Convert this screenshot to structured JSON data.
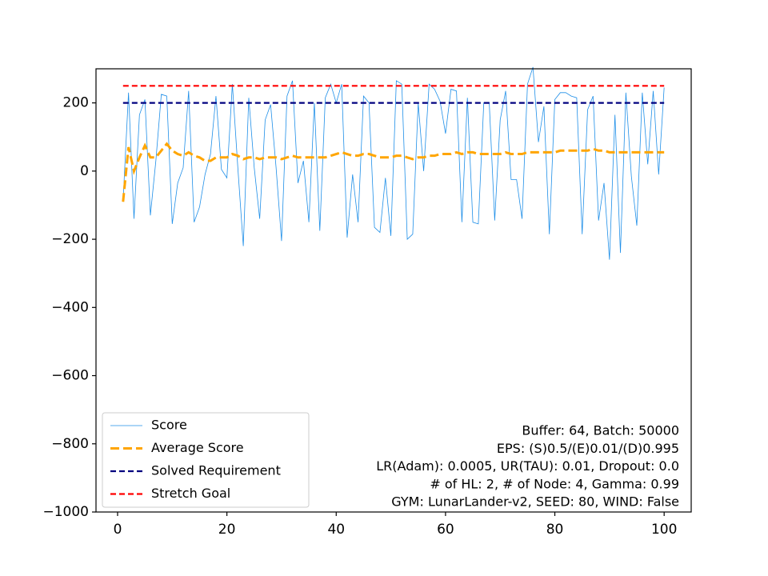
{
  "chart_data": {
    "type": "line",
    "x": [
      1,
      2,
      3,
      4,
      5,
      6,
      7,
      8,
      9,
      10,
      11,
      12,
      13,
      14,
      15,
      16,
      17,
      18,
      19,
      20,
      21,
      22,
      23,
      24,
      25,
      26,
      27,
      28,
      29,
      30,
      31,
      32,
      33,
      34,
      35,
      36,
      37,
      38,
      39,
      40,
      41,
      42,
      43,
      44,
      45,
      46,
      47,
      48,
      49,
      50,
      51,
      52,
      53,
      54,
      55,
      56,
      57,
      58,
      59,
      60,
      61,
      62,
      63,
      64,
      65,
      66,
      67,
      68,
      69,
      70,
      71,
      72,
      73,
      74,
      75,
      76,
      77,
      78,
      79,
      80,
      81,
      82,
      83,
      84,
      85,
      86,
      87,
      88,
      89,
      90,
      91,
      92,
      93,
      94,
      95,
      96,
      97,
      98,
      99,
      100
    ],
    "series": [
      {
        "name": "Score",
        "color": "#1f8fe8",
        "width": 0.8,
        "dash": "solid",
        "values": [
          -90,
          230,
          -140,
          165,
          210,
          -130,
          30,
          225,
          220,
          -155,
          -35,
          10,
          235,
          -150,
          -105,
          -10,
          50,
          220,
          5,
          -20,
          255,
          10,
          -220,
          215,
          10,
          -140,
          150,
          195,
          10,
          -205,
          220,
          265,
          -35,
          30,
          -150,
          200,
          -175,
          215,
          255,
          200,
          255,
          -195,
          -10,
          -150,
          220,
          200,
          -165,
          -180,
          -20,
          -190,
          265,
          255,
          -200,
          -185,
          200,
          0,
          255,
          240,
          205,
          110,
          240,
          235,
          -150,
          215,
          -150,
          -155,
          200,
          200,
          -145,
          150,
          235,
          -25,
          -25,
          -140,
          255,
          305,
          85,
          190,
          -185,
          210,
          230,
          230,
          220,
          215,
          -185,
          180,
          220,
          -145,
          -35,
          -260,
          165,
          -240,
          230,
          -15,
          -160,
          230,
          20,
          235,
          -10,
          245
        ]
      },
      {
        "name": "Average Score",
        "color": "orange",
        "width": 3,
        "dash": "dashed",
        "values": [
          -90,
          70,
          0,
          40,
          75,
          40,
          40,
          60,
          80,
          60,
          50,
          45,
          55,
          45,
          40,
          30,
          30,
          40,
          40,
          40,
          50,
          45,
          35,
          40,
          40,
          35,
          40,
          40,
          40,
          35,
          40,
          45,
          40,
          40,
          40,
          40,
          40,
          40,
          45,
          50,
          55,
          50,
          45,
          45,
          50,
          50,
          45,
          40,
          40,
          40,
          45,
          45,
          40,
          35,
          40,
          40,
          45,
          45,
          50,
          50,
          50,
          55,
          50,
          55,
          55,
          50,
          50,
          50,
          50,
          50,
          55,
          50,
          50,
          50,
          55,
          55,
          55,
          55,
          55,
          55,
          60,
          60,
          60,
          60,
          60,
          60,
          65,
          60,
          60,
          55,
          55,
          55,
          55,
          55,
          55,
          55,
          55,
          55,
          55,
          55
        ]
      }
    ],
    "hlines": [
      {
        "name": "Solved Requirement",
        "value": 200,
        "color": "#00007f"
      },
      {
        "name": "Stretch Goal",
        "value": 250,
        "color": "#ff0000"
      }
    ],
    "annotation": [
      "Buffer: 64, Batch: 50000",
      "EPS: (S)0.5/(E)0.01/(D)0.995",
      "LR(Adam): 0.0005, UR(TAU): 0.01, Dropout: 0.0",
      "# of HL: 2, # of Node: 4, Gamma: 0.99",
      "GYM: LunarLander-v2, SEED: 80, WIND: False"
    ],
    "xlim": [
      -3.95,
      104.95
    ],
    "ylim": [
      -1000,
      300
    ],
    "xticks": [
      0,
      20,
      40,
      60,
      80,
      100
    ],
    "yticks": [
      {
        "value": -1000,
        "label": "−1000"
      },
      {
        "value": -800,
        "label": "−800"
      },
      {
        "value": -600,
        "label": "−600"
      },
      {
        "value": -400,
        "label": "−400"
      },
      {
        "value": -200,
        "label": "−200"
      },
      0,
      200
    ],
    "legend": "lower left"
  }
}
